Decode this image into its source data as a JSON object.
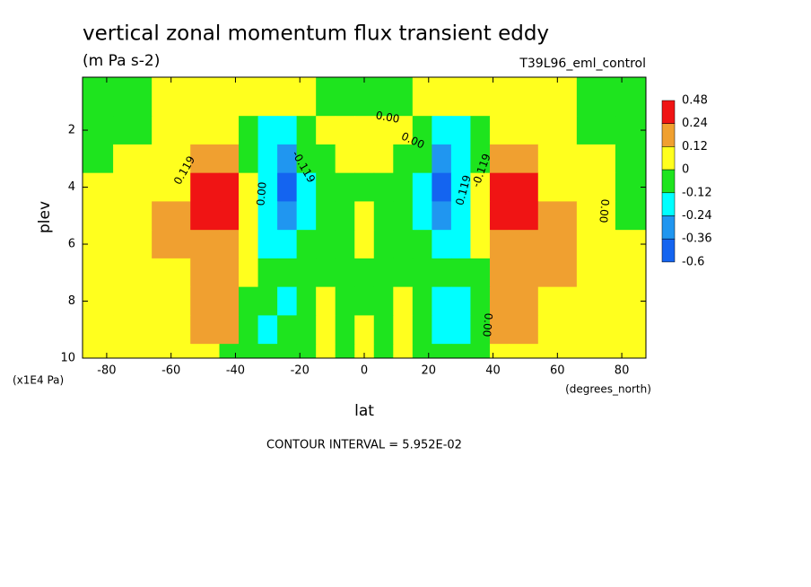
{
  "chart_data": {
    "type": "contour",
    "title": "vertical zonal momentum flux transient eddy",
    "subtitle": "(m Pa s-2)",
    "dataset": "T39L96_eml_control",
    "x_label": "lat",
    "x_units": "(degrees_north)",
    "y_label": "plev",
    "y_units": "(x1E4 Pa)",
    "footnote": "CONTOUR INTERVAL = 5.952E-02",
    "xlim": [
      -87.5,
      87.5
    ],
    "ylim": [
      10,
      0.14
    ],
    "xticks": [
      -80,
      -60,
      -40,
      -20,
      0,
      20,
      40,
      60,
      80
    ],
    "yticks": [
      2,
      4,
      6,
      8,
      10
    ],
    "x": [
      -84,
      -72,
      -60,
      -48,
      -42,
      -36,
      -30,
      -24,
      -18,
      -12,
      -6,
      0,
      6,
      12,
      18,
      24,
      30,
      36,
      42,
      48,
      60,
      72,
      84
    ],
    "y": [
      1,
      2,
      3,
      4,
      5,
      6,
      7,
      8,
      9,
      10
    ],
    "z": [
      [
        -0.06,
        -0.06,
        0.06,
        0.06,
        0.06,
        0.06,
        0.06,
        0.06,
        0.06,
        -0.06,
        -0.06,
        -0.06,
        -0.06,
        -0.06,
        0.06,
        0.06,
        0.06,
        0.06,
        0.06,
        0.06,
        0.06,
        -0.06,
        -0.06
      ],
      [
        -0.06,
        -0.06,
        0.06,
        0.06,
        0.06,
        -0.06,
        -0.18,
        -0.18,
        -0.06,
        0.06,
        0.06,
        0.06,
        0.06,
        0.06,
        -0.06,
        -0.18,
        -0.18,
        -0.06,
        0.06,
        0.06,
        0.06,
        -0.06,
        -0.06
      ],
      [
        -0.06,
        0.06,
        0.06,
        0.18,
        0.18,
        -0.06,
        -0.18,
        -0.3,
        -0.06,
        -0.06,
        0.06,
        0.06,
        0.06,
        -0.06,
        -0.06,
        -0.3,
        -0.18,
        -0.06,
        0.18,
        0.18,
        0.06,
        0.06,
        -0.06
      ],
      [
        0.06,
        0.06,
        0.06,
        0.35,
        0.35,
        0.06,
        -0.18,
        -0.45,
        -0.18,
        -0.06,
        -0.06,
        -0.06,
        -0.06,
        -0.06,
        -0.18,
        -0.45,
        -0.18,
        0.06,
        0.35,
        0.35,
        0.06,
        0.06,
        -0.06
      ],
      [
        0.06,
        0.06,
        0.18,
        0.35,
        0.35,
        0.06,
        -0.18,
        -0.3,
        -0.18,
        -0.06,
        -0.06,
        0.06,
        -0.06,
        -0.06,
        -0.18,
        -0.3,
        -0.18,
        0.06,
        0.35,
        0.35,
        0.18,
        0.06,
        -0.06
      ],
      [
        0.06,
        0.06,
        0.18,
        0.18,
        0.18,
        0.06,
        -0.18,
        -0.18,
        -0.06,
        -0.06,
        -0.06,
        0.06,
        -0.06,
        -0.06,
        -0.06,
        -0.18,
        -0.18,
        0.06,
        0.18,
        0.18,
        0.18,
        0.06,
        0.06
      ],
      [
        0.06,
        0.06,
        0.06,
        0.18,
        0.18,
        0.06,
        -0.06,
        -0.06,
        -0.06,
        -0.06,
        -0.06,
        -0.06,
        -0.06,
        -0.06,
        -0.06,
        -0.06,
        -0.06,
        -0.06,
        0.18,
        0.18,
        0.18,
        0.06,
        0.06
      ],
      [
        0.06,
        0.06,
        0.06,
        0.18,
        0.18,
        -0.06,
        -0.06,
        -0.18,
        -0.06,
        0.06,
        -0.06,
        -0.06,
        -0.06,
        0.06,
        -0.06,
        -0.18,
        -0.18,
        -0.06,
        0.18,
        0.18,
        0.06,
        0.06,
        0.06
      ],
      [
        0.06,
        0.06,
        0.06,
        0.18,
        0.18,
        -0.06,
        -0.18,
        -0.06,
        -0.06,
        0.06,
        -0.06,
        0.06,
        -0.06,
        0.06,
        -0.06,
        -0.18,
        -0.18,
        -0.06,
        0.18,
        0.18,
        0.06,
        0.06,
        0.06
      ],
      [
        0.06,
        0.06,
        0.06,
        0.06,
        -0.06,
        -0.06,
        -0.06,
        -0.06,
        -0.06,
        0.06,
        -0.06,
        0.06,
        -0.06,
        0.06,
        -0.06,
        -0.06,
        -0.06,
        -0.06,
        0.06,
        0.06,
        0.06,
        0.06,
        0.06
      ]
    ],
    "colorbar": {
      "levels": [
        0.48,
        0.24,
        0.12,
        0,
        -0.12,
        -0.24,
        -0.36,
        -0.6
      ],
      "colors": [
        "#f01414",
        "#f0a030",
        "#ffff1e",
        "#1ee41e",
        "#00ffff",
        "#2096f0",
        "#1464f0"
      ]
    },
    "contour_labels": [
      "0.00",
      "0.00",
      "0.119",
      "0.00",
      "-0.119",
      "0.119",
      "-0.119",
      "0.00",
      "0.00"
    ]
  }
}
